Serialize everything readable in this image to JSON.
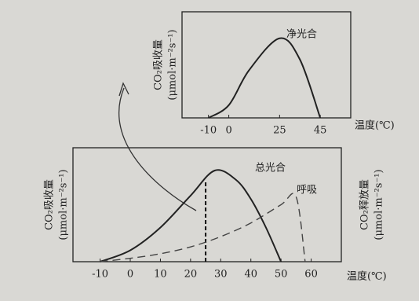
{
  "chart_data": [
    {
      "type": "line",
      "ylabel": [
        "CO₂吸收量",
        "(μmol·m⁻²s⁻¹)"
      ],
      "xlabel": "温度(℃)",
      "xlim": [
        -23,
        60
      ],
      "xticks": [
        -10,
        0,
        25,
        45
      ],
      "ylim": [
        0,
        100
      ],
      "series": [
        {
          "name": "净光合",
          "color": "#222222",
          "style": "solid",
          "x": [
            -10,
            0,
            10,
            25,
            35,
            45
          ],
          "values": [
            0,
            12,
            45,
            75,
            55,
            0
          ]
        }
      ]
    },
    {
      "type": "line",
      "ylabel": [
        "CO₂吸收量",
        "(μmol·m⁻²s⁻¹)"
      ],
      "y2label": [
        "CO₂释放量",
        "(μmol·m⁻²s⁻¹)"
      ],
      "xlabel": "温度(℃)",
      "xlim": [
        -19,
        70
      ],
      "xticks": [
        -10,
        0,
        10,
        20,
        30,
        40,
        50,
        60
      ],
      "ylim": [
        0,
        100
      ],
      "vline": 25,
      "series": [
        {
          "name": "总光合",
          "color": "#222222",
          "style": "solid",
          "x": [
            -10,
            0,
            10,
            20,
            28,
            35,
            40,
            45,
            50
          ],
          "values": [
            0,
            10,
            30,
            58,
            80,
            72,
            55,
            30,
            0
          ]
        },
        {
          "name": "呼吸",
          "color": "#444444",
          "style": "dashed",
          "x": [
            -10,
            0,
            10,
            20,
            30,
            40,
            50,
            55,
            58
          ],
          "values": [
            0,
            3,
            7,
            13,
            22,
            34,
            50,
            57,
            0
          ]
        }
      ]
    }
  ]
}
